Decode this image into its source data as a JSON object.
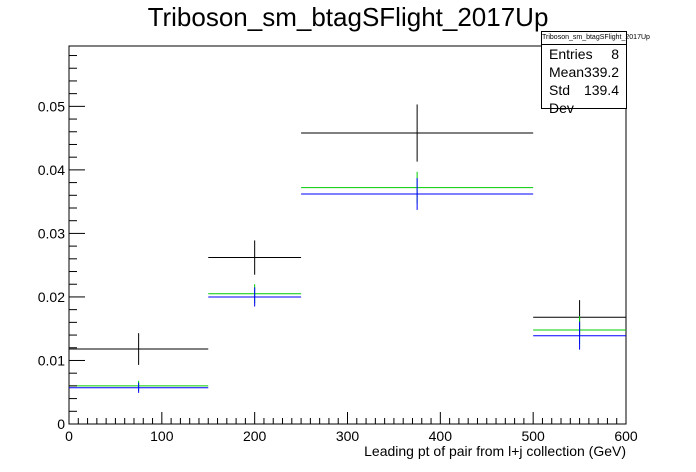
{
  "chart_data": {
    "type": "histogram",
    "title": "Triboson_sm_btagSFlight_2017Up",
    "xlabel": "Leading pt of pair from l+j collection (GeV)",
    "ylabel": "",
    "xlim": [
      0,
      600
    ],
    "ylim": [
      0,
      0.0595
    ],
    "x_ticks": [
      0,
      100,
      200,
      300,
      400,
      500,
      600
    ],
    "y_ticks": [
      0,
      0.01,
      0.02,
      0.03,
      0.04,
      0.05
    ],
    "x_tick_labels": [
      "0",
      "100",
      "200",
      "300",
      "400",
      "500",
      "600"
    ],
    "y_tick_labels": [
      "0",
      "0.01",
      "0.02",
      "0.03",
      "0.04",
      "0.05"
    ],
    "bin_edges": [
      0,
      150,
      250,
      500,
      600
    ],
    "grid": false,
    "legend": "none",
    "series": [
      {
        "color": "#000000",
        "values": [
          0.0118,
          0.0262,
          0.0458,
          0.0168
        ],
        "errors": [
          0.0025,
          0.0027,
          0.0045,
          0.0027
        ]
      },
      {
        "color": "#00cc00",
        "values": [
          0.006,
          0.0205,
          0.0372,
          0.0148
        ],
        "errors": [
          0.0008,
          0.0015,
          0.0025,
          0.0022
        ]
      },
      {
        "color": "#0000ff",
        "values": [
          0.0057,
          0.02,
          0.0362,
          0.0139
        ],
        "errors": [
          0.0008,
          0.0015,
          0.0025,
          0.0022
        ]
      }
    ]
  },
  "stats": {
    "name": "Triboson_sm_btagSFlight_2017Up",
    "entries_label": "Entries",
    "entries_value": "8",
    "mean_label": "Mean",
    "mean_value": "339.2",
    "stddev_label": "Std Dev",
    "stddev_value": "139.4"
  }
}
